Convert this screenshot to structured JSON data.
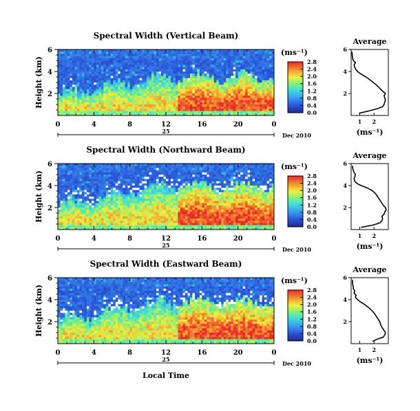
{
  "chart_data": [
    {
      "type": "heatmap",
      "title": "Spectral Width (Vertical Beam)",
      "ylabel": "Height (km)",
      "ylim": [
        0,
        6
      ],
      "yticks": [
        "2",
        "4",
        "6"
      ],
      "xlim": [
        0,
        24
      ],
      "xticks": [
        "0",
        "4",
        "8",
        "12",
        "16",
        "20",
        "0"
      ],
      "date_day": "25",
      "date_month": "Dec 2010",
      "colorbar": {
        "unit": "(ms⁻¹)",
        "range": [
          0,
          2.8
        ],
        "ticks": [
          "0.0",
          "0.4",
          "0.8",
          "1.2",
          "1.6",
          "2.0",
          "2.4",
          "2.8"
        ]
      },
      "rough_layer_top_km": 3.5,
      "average": {
        "title": "Average",
        "xlabel": "(ms⁻¹)",
        "xticks": [
          "1",
          "2"
        ],
        "xlim": [
          0.4,
          3.0
        ],
        "ylim": [
          0,
          6
        ],
        "yticks": [
          "2",
          "4",
          "6"
        ],
        "height_km": [
          0.2,
          0.4,
          0.6,
          0.8,
          1.0,
          1.2,
          1.4,
          1.6,
          1.8,
          2.0,
          2.2,
          2.4,
          2.6,
          2.8,
          3.0,
          3.2,
          3.4,
          3.6,
          3.8,
          4.0,
          4.2,
          4.4,
          4.6,
          4.8,
          5.0,
          5.2,
          5.4,
          5.6,
          5.8
        ],
        "value": [
          0.95,
          1.6,
          2.2,
          2.6,
          2.7,
          2.75,
          2.8,
          2.75,
          2.7,
          2.8,
          2.6,
          2.45,
          2.3,
          2.15,
          1.95,
          1.75,
          1.55,
          1.3,
          1.05,
          0.85,
          0.72,
          0.65,
          0.6,
          0.7,
          0.55,
          0.5,
          0.48,
          0.47,
          0.45
        ]
      }
    },
    {
      "type": "heatmap",
      "title": "Spectral Width (Northward Beam)",
      "ylabel": "Height (km)",
      "ylim": [
        0,
        6
      ],
      "yticks": [
        "2",
        "4",
        "6"
      ],
      "xlim": [
        0,
        24
      ],
      "xticks": [
        "0",
        "4",
        "8",
        "12",
        "16",
        "20",
        "0"
      ],
      "date_day": "25",
      "date_month": "Dec 2010",
      "colorbar": {
        "unit": "(ms⁻¹)",
        "range": [
          0,
          2.8
        ],
        "ticks": [
          "0.0",
          "0.4",
          "0.8",
          "1.2",
          "1.6",
          "2.0",
          "2.4",
          "2.8"
        ]
      },
      "rough_layer_top_km": 4.0,
      "average": {
        "title": "Average",
        "xlabel": "(ms⁻¹)",
        "xticks": [
          "1",
          "2"
        ],
        "xlim": [
          0.4,
          3.0
        ],
        "ylim": [
          0,
          6
        ],
        "yticks": [
          "2",
          "4",
          "6"
        ],
        "height_km": [
          0.2,
          0.4,
          0.6,
          0.8,
          1.0,
          1.2,
          1.4,
          1.6,
          1.8,
          2.0,
          2.2,
          2.4,
          2.6,
          2.8,
          3.0,
          3.2,
          3.4,
          3.6,
          3.8,
          4.0,
          4.2,
          4.4,
          4.6,
          4.8,
          5.0,
          5.2,
          5.4,
          5.6,
          5.8
        ],
        "value": [
          1.1,
          1.9,
          2.4,
          2.55,
          2.6,
          2.55,
          2.7,
          2.75,
          2.85,
          2.8,
          2.65,
          2.55,
          2.45,
          2.35,
          2.25,
          2.15,
          2.0,
          1.8,
          1.5,
          1.1,
          0.8,
          0.65,
          0.6,
          0.65,
          0.7,
          0.6,
          0.55,
          0.5,
          0.5
        ]
      }
    },
    {
      "type": "heatmap",
      "title": "Spectral Width (Eastward Beam)",
      "ylabel": "Height (km)",
      "ylim": [
        0,
        6
      ],
      "yticks": [
        "2",
        "4",
        "6"
      ],
      "xlim": [
        0,
        24
      ],
      "xticks": [
        "0",
        "4",
        "8",
        "12",
        "16",
        "20",
        "0"
      ],
      "date_day": "25",
      "date_month": "Dec 2010",
      "xlabel": "Local Time",
      "colorbar": {
        "unit": "(ms⁻¹)",
        "range": [
          0,
          2.8
        ],
        "ticks": [
          "0.0",
          "0.4",
          "0.8",
          "1.2",
          "1.6",
          "2.0",
          "2.4",
          "2.8"
        ]
      },
      "rough_layer_top_km": 3.8,
      "average": {
        "title": "Average",
        "xlabel": "(ms⁻¹)",
        "xticks": [
          "1",
          "2"
        ],
        "xlim": [
          0.4,
          3.0
        ],
        "ylim": [
          0,
          6
        ],
        "yticks": [
          "2",
          "4",
          "6"
        ],
        "height_km": [
          0.2,
          0.4,
          0.6,
          0.8,
          1.0,
          1.2,
          1.4,
          1.6,
          1.8,
          2.0,
          2.2,
          2.4,
          2.6,
          2.8,
          3.0,
          3.2,
          3.4,
          3.6,
          3.8,
          4.0,
          4.2,
          4.4,
          4.6,
          4.8,
          5.0,
          5.2,
          5.4,
          5.6,
          5.8
        ],
        "value": [
          1.9,
          2.2,
          2.65,
          2.75,
          2.8,
          2.7,
          2.6,
          2.5,
          2.45,
          2.4,
          2.3,
          2.2,
          2.1,
          2.0,
          1.85,
          1.7,
          1.5,
          1.3,
          1.05,
          0.85,
          0.7,
          0.75,
          0.6,
          0.65,
          0.55,
          0.55,
          0.5,
          0.5,
          0.48
        ]
      }
    }
  ]
}
